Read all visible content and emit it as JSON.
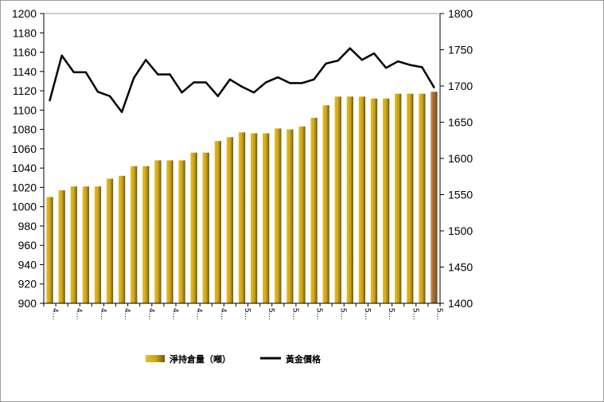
{
  "chart_data": {
    "type": "bar+line",
    "title": "",
    "x": [
      "4…",
      "4…",
      "4…",
      "4…",
      "4…",
      "4…",
      "4…",
      "4…",
      "4…",
      "4…",
      "4…",
      "4…",
      "4…",
      "4…",
      "4…",
      "4…",
      "5…",
      "5…",
      "5…",
      "5…",
      "5…",
      "5…",
      "5…",
      "5…",
      "5…",
      "5…",
      "5…",
      "5…",
      "5…",
      "5…",
      "5…",
      "5…",
      "5…"
    ],
    "x_tick_indices": [
      0,
      2,
      4,
      6,
      8,
      10,
      12,
      14,
      16,
      18,
      20,
      22,
      24,
      26,
      28,
      30,
      32
    ],
    "series": [
      {
        "name": "淨持倉量（噸）",
        "type": "bar",
        "axis": "left",
        "values": [
          1010,
          1017,
          1021,
          1021,
          1021,
          1029,
          1032,
          1042,
          1042,
          1048,
          1048,
          1048,
          1056,
          1056,
          1068,
          1072,
          1077,
          1076,
          1076,
          1081,
          1080,
          1083,
          1092,
          1105,
          1114,
          1114,
          1114,
          1112,
          1112,
          1117,
          1117,
          1117,
          1119
        ]
      },
      {
        "name": "黃金價格",
        "type": "line",
        "axis": "right",
        "values": [
          1680,
          1742,
          1719,
          1719,
          1692,
          1686,
          1664,
          1711,
          1736,
          1716,
          1716,
          1691,
          1705,
          1705,
          1686,
          1709,
          1699,
          1691,
          1705,
          1712,
          1704,
          1704,
          1709,
          1731,
          1735,
          1752,
          1736,
          1745,
          1725,
          1734,
          1729,
          1726,
          1698
        ]
      }
    ],
    "y_left": {
      "min": 900,
      "max": 1200,
      "step": 20
    },
    "y_right": {
      "min": 1400,
      "max": 1800,
      "step": 50
    },
    "legend_position": "bottom",
    "colors": {
      "bar": "#C9A21B",
      "bar_dark": "#7A6008",
      "bar_last": "#A0693A",
      "line": "#000000"
    }
  }
}
